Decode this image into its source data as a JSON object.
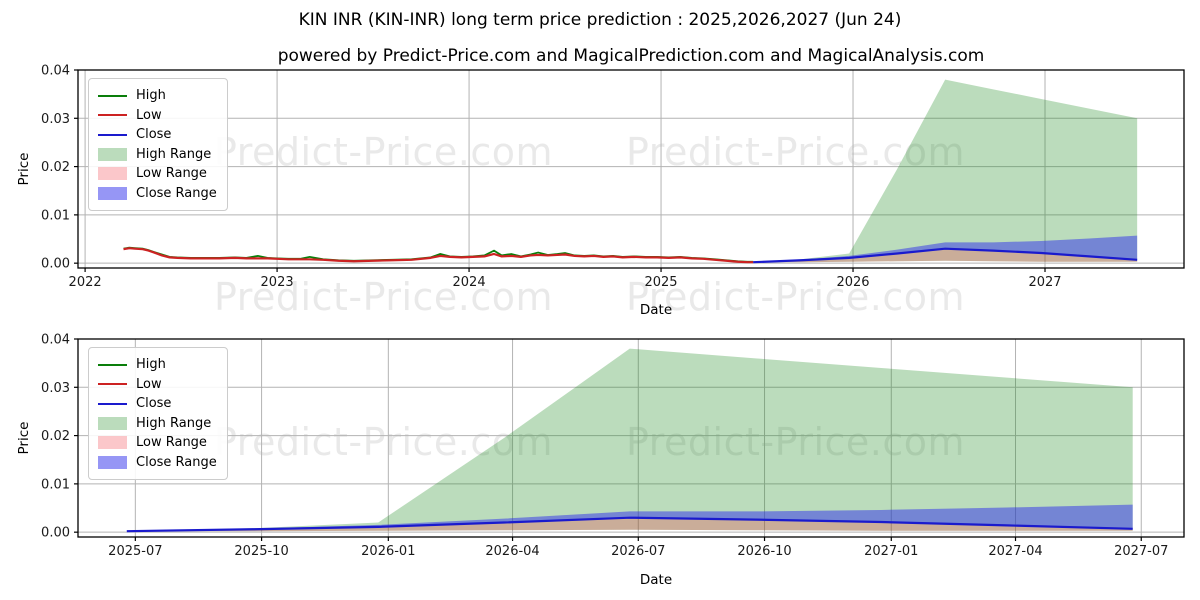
{
  "header": {
    "title": "KIN INR (KIN-INR) long term price prediction : 2025,2026,2027 (Jun 24)",
    "subtitle": "powered by Predict-Price.com and MagicalPrediction.com and MagicalAnalysis.com"
  },
  "watermark": {
    "text": "Predict-Price.com"
  },
  "colors": {
    "high_line": "#0a7e0a",
    "low_line": "#cc2222",
    "close_line": "#1a1acd",
    "high_range_fill": "rgba(30,138,33,0.30)",
    "low_range_fill": "rgba(240,55,65,0.28)",
    "close_range_fill": "rgba(45,45,235,0.50)",
    "grid": "#b3b3b3",
    "spine": "#000000",
    "tick_text": "#1a1a1a"
  },
  "legend": {
    "items": [
      {
        "label": "High",
        "type": "line",
        "color_key": "high_line"
      },
      {
        "label": "Low",
        "type": "line",
        "color_key": "low_line"
      },
      {
        "label": "Close",
        "type": "line",
        "color_key": "close_line"
      },
      {
        "label": "High Range",
        "type": "patch",
        "color_key": "high_range_fill"
      },
      {
        "label": "Low Range",
        "type": "patch",
        "color_key": "low_range_fill"
      },
      {
        "label": "Close Range",
        "type": "patch",
        "color_key": "close_range_fill"
      }
    ]
  },
  "chart_data": [
    {
      "id": "history-and-forecast",
      "type": "line",
      "xlabel": "Date",
      "ylabel": "Price",
      "ylim": [
        0,
        0.04
      ],
      "yticks": [
        {
          "v": 0.0,
          "label": "0.00"
        },
        {
          "v": 0.01,
          "label": "0.01"
        },
        {
          "v": 0.02,
          "label": "0.02"
        },
        {
          "v": 0.03,
          "label": "0.03"
        },
        {
          "v": 0.04,
          "label": "0.04"
        }
      ],
      "xlim_t": [
        2021.963,
        2027.724
      ],
      "xticks": [
        {
          "t": 2022,
          "label": "2022"
        },
        {
          "t": 2023,
          "label": "2023"
        },
        {
          "t": 2024,
          "label": "2024"
        },
        {
          "t": 2025,
          "label": "2025"
        },
        {
          "t": 2026,
          "label": "2026"
        },
        {
          "t": 2027,
          "label": "2027"
        }
      ],
      "history_points_t_low_high": [
        [
          2022.2,
          0.0029,
          0.003
        ],
        [
          2022.23,
          0.0031,
          0.0032
        ],
        [
          2022.26,
          0.003,
          0.0031
        ],
        [
          2022.3,
          0.0029,
          0.003
        ],
        [
          2022.33,
          0.0026,
          0.0027
        ],
        [
          2022.36,
          0.0022,
          0.0023
        ],
        [
          2022.4,
          0.0016,
          0.0018
        ],
        [
          2022.44,
          0.0012,
          0.0013
        ],
        [
          2022.48,
          0.0011,
          0.0012
        ],
        [
          2022.55,
          0.001,
          0.0011
        ],
        [
          2022.62,
          0.001,
          0.0011
        ],
        [
          2022.7,
          0.001,
          0.0011
        ],
        [
          2022.78,
          0.0011,
          0.0012
        ],
        [
          2022.84,
          0.001,
          0.0011
        ],
        [
          2022.9,
          0.001,
          0.0015
        ],
        [
          2022.95,
          0.001,
          0.0011
        ],
        [
          2023.0,
          0.0009,
          0.001
        ],
        [
          2023.06,
          0.0008,
          0.0009
        ],
        [
          2023.12,
          0.0008,
          0.0009
        ],
        [
          2023.17,
          0.0008,
          0.0013
        ],
        [
          2023.24,
          0.0007,
          0.0008
        ],
        [
          2023.32,
          0.0005,
          0.0006
        ],
        [
          2023.4,
          0.0004,
          0.0005
        ],
        [
          2023.5,
          0.0005,
          0.0006
        ],
        [
          2023.6,
          0.0006,
          0.0007
        ],
        [
          2023.7,
          0.0007,
          0.0008
        ],
        [
          2023.8,
          0.0011,
          0.0012
        ],
        [
          2023.85,
          0.0015,
          0.0019
        ],
        [
          2023.9,
          0.0013,
          0.0014
        ],
        [
          2023.96,
          0.0012,
          0.0013
        ],
        [
          2024.02,
          0.0013,
          0.0014
        ],
        [
          2024.08,
          0.0014,
          0.0016
        ],
        [
          2024.13,
          0.0019,
          0.0026
        ],
        [
          2024.17,
          0.0014,
          0.0016
        ],
        [
          2024.22,
          0.0015,
          0.0019
        ],
        [
          2024.27,
          0.0013,
          0.0014
        ],
        [
          2024.32,
          0.0016,
          0.0018
        ],
        [
          2024.36,
          0.0017,
          0.0022
        ],
        [
          2024.41,
          0.0016,
          0.0017
        ],
        [
          2024.46,
          0.0017,
          0.0019
        ],
        [
          2024.5,
          0.0018,
          0.0021
        ],
        [
          2024.55,
          0.0015,
          0.0016
        ],
        [
          2024.6,
          0.0014,
          0.0015
        ],
        [
          2024.65,
          0.0015,
          0.0016
        ],
        [
          2024.7,
          0.0013,
          0.0014
        ],
        [
          2024.75,
          0.0014,
          0.0015
        ],
        [
          2024.8,
          0.0012,
          0.0013
        ],
        [
          2024.86,
          0.0013,
          0.0014
        ],
        [
          2024.92,
          0.0012,
          0.0013
        ],
        [
          2024.98,
          0.0012,
          0.0013
        ],
        [
          2025.04,
          0.0011,
          0.0012
        ],
        [
          2025.1,
          0.0012,
          0.0013
        ],
        [
          2025.16,
          0.001,
          0.0011
        ],
        [
          2025.22,
          0.0009,
          0.001
        ],
        [
          2025.28,
          0.0007,
          0.0008
        ],
        [
          2025.34,
          0.0005,
          0.0006
        ],
        [
          2025.4,
          0.0003,
          0.0004
        ],
        [
          2025.45,
          0.0002,
          0.0003
        ],
        [
          2025.48,
          0.0002,
          0.0003
        ]
      ],
      "forecast": {
        "t": [
          2025.48,
          2025.73,
          2025.98,
          2026.23,
          2026.48,
          2026.73,
          2026.98,
          2027.23,
          2027.48
        ],
        "close": [
          0.0002,
          0.0006,
          0.0011,
          0.002,
          0.003,
          0.0026,
          0.0021,
          0.0014,
          0.0007
        ],
        "close_upper": [
          0.0002,
          0.0007,
          0.0015,
          0.0028,
          0.0043,
          0.0043,
          0.0046,
          0.0051,
          0.0057
        ],
        "low_lower": [
          0.0002,
          0.0002,
          0.0003,
          0.0004,
          0.0005,
          0.0004,
          0.0003,
          0.0003,
          0.0003
        ],
        "high_upper": [
          0.0002,
          0.0008,
          0.002,
          0.0195,
          0.038,
          0.036,
          0.034,
          0.032,
          0.03
        ]
      }
    },
    {
      "id": "forecast-detail",
      "type": "line",
      "xlabel": "Date",
      "ylabel": "Price",
      "ylim": [
        0,
        0.04
      ],
      "yticks": [
        {
          "v": 0.0,
          "label": "0.00"
        },
        {
          "v": 0.01,
          "label": "0.01"
        },
        {
          "v": 0.02,
          "label": "0.02"
        },
        {
          "v": 0.03,
          "label": "0.03"
        },
        {
          "v": 0.04,
          "label": "0.04"
        }
      ],
      "xlim_t": [
        2025.383,
        2027.582
      ],
      "xticks": [
        {
          "t": 2025.497,
          "label": "2025-07"
        },
        {
          "t": 2025.748,
          "label": "2025-10"
        },
        {
          "t": 2026.0,
          "label": "2026-01"
        },
        {
          "t": 2026.247,
          "label": "2026-04"
        },
        {
          "t": 2026.497,
          "label": "2026-07"
        },
        {
          "t": 2026.748,
          "label": "2026-10"
        },
        {
          "t": 2027.0,
          "label": "2027-01"
        },
        {
          "t": 2027.247,
          "label": "2027-04"
        },
        {
          "t": 2027.497,
          "label": "2027-07"
        }
      ],
      "history_points_t_low_high": [],
      "forecast": {
        "t": [
          2025.48,
          2025.73,
          2025.98,
          2026.23,
          2026.48,
          2026.73,
          2026.98,
          2027.23,
          2027.48
        ],
        "close": [
          0.0002,
          0.0006,
          0.0011,
          0.002,
          0.003,
          0.0026,
          0.0021,
          0.0014,
          0.0007
        ],
        "close_upper": [
          0.0002,
          0.0007,
          0.0015,
          0.0028,
          0.0043,
          0.0043,
          0.0046,
          0.0051,
          0.0057
        ],
        "low_lower": [
          0.0002,
          0.0002,
          0.0003,
          0.0004,
          0.0005,
          0.0004,
          0.0003,
          0.0003,
          0.0003
        ],
        "high_upper": [
          0.0002,
          0.0008,
          0.002,
          0.0195,
          0.038,
          0.036,
          0.034,
          0.032,
          0.03
        ]
      }
    }
  ]
}
